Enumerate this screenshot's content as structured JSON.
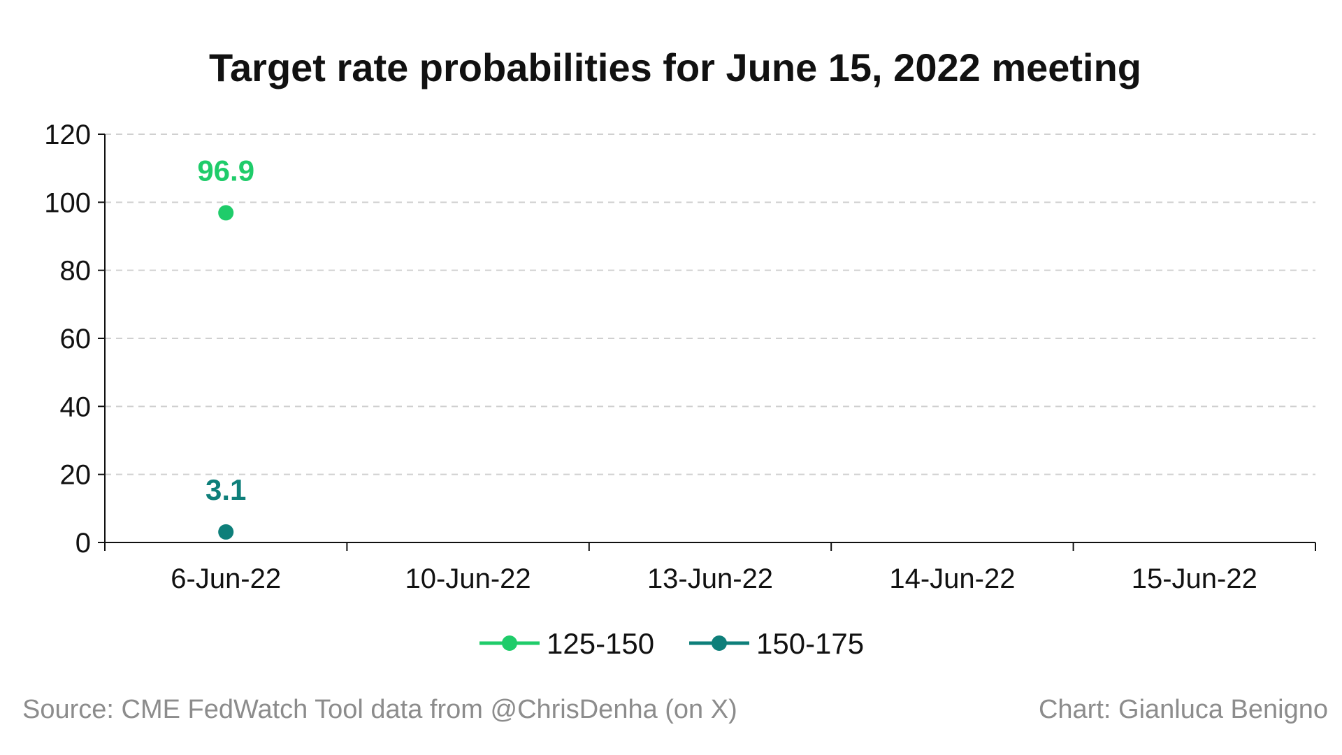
{
  "chart_data": {
    "type": "line",
    "title": "Target rate probabilities for June 15, 2022 meeting",
    "categories": [
      "6-Jun-22",
      "10-Jun-22",
      "13-Jun-22",
      "14-Jun-22",
      "15-Jun-22"
    ],
    "series": [
      {
        "name": "125-150",
        "color": "#1fcc6a",
        "values": [
          96.9,
          null,
          null,
          null,
          null
        ]
      },
      {
        "name": "150-175",
        "color": "#0e7f7a",
        "values": [
          3.1,
          null,
          null,
          null,
          null
        ]
      }
    ],
    "ylim": [
      0,
      120
    ],
    "yticks": [
      0,
      20,
      40,
      60,
      80,
      100,
      120
    ],
    "data_labels": [
      "96.9",
      "3.1"
    ],
    "grid": true,
    "legend_position": "bottom-center"
  },
  "footer": {
    "source": "Source: CME FedWatch Tool data from @ChrisDenha (on X)",
    "credit": "Chart: Gianluca Benigno"
  }
}
